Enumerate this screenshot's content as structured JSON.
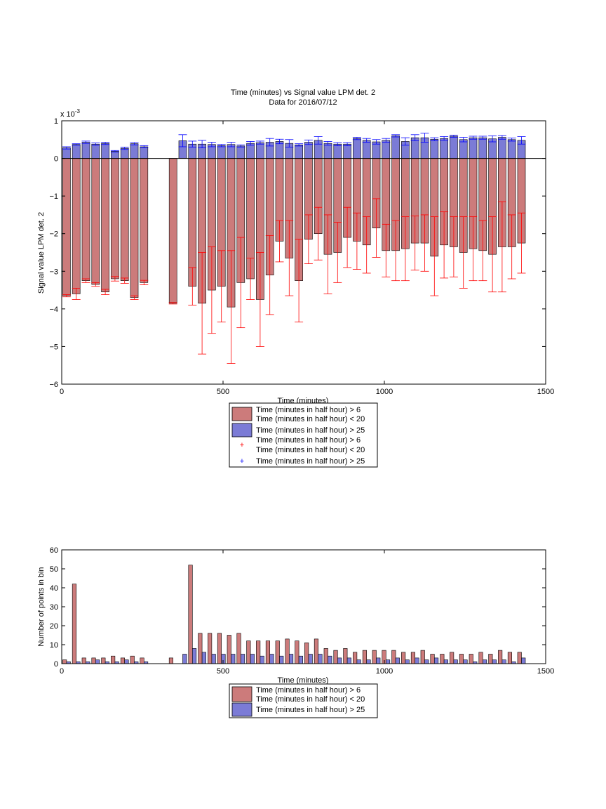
{
  "colors": {
    "red_bar": "#cc7b7b",
    "blue_bar": "#7b7bd6",
    "red_err": "#ff0000",
    "blue_err": "#0000ff",
    "axis": "#000000"
  },
  "chart_data": [
    {
      "type": "bar",
      "title": "Time (minutes) vs Signal value LPM det. 2",
      "subtitle": "Data for 2016/07/12",
      "xlabel": "Time (minutes)",
      "ylabel": "Signal value LPM det. 2",
      "y_exponent_label": "x 10",
      "y_exponent_power": "-3",
      "xlim": [
        0,
        1500
      ],
      "ylim": [
        -6,
        1
      ],
      "xticks": [
        "0",
        "500",
        "1000",
        "1500"
      ],
      "yticks": [
        "1",
        "0",
        "−1",
        "−2",
        "−3",
        "−4",
        "−5",
        "−6"
      ],
      "ytick_values": [
        1,
        0,
        -1,
        -2,
        -3,
        -4,
        -5,
        -6
      ],
      "grid": false,
      "legend_position": "below",
      "legend": [
        {
          "kind": "bar",
          "color": "red",
          "lines": [
            "Time (minutes in half hour) > 6",
            "Time (minutes in half hour) < 20"
          ]
        },
        {
          "kind": "bar",
          "color": "blue",
          "lines": [
            "Time (minutes in half hour) > 25"
          ]
        },
        {
          "kind": "marker",
          "color": "red",
          "lines": [
            "Time (minutes in half hour) > 6",
            "Time (minutes in half hour) < 20"
          ]
        },
        {
          "kind": "marker",
          "color": "blue",
          "lines": [
            "Time (minutes in half hour) > 25"
          ]
        }
      ],
      "x": [
        15,
        45,
        75,
        105,
        135,
        165,
        195,
        225,
        255,
        345,
        375,
        405,
        435,
        465,
        495,
        525,
        555,
        585,
        615,
        645,
        675,
        705,
        735,
        765,
        795,
        825,
        855,
        885,
        915,
        945,
        975,
        1005,
        1035,
        1065,
        1095,
        1125,
        1155,
        1185,
        1215,
        1245,
        1275,
        1305,
        1335,
        1365,
        1395,
        1425
      ],
      "series": [
        {
          "values": [
            -3.65,
            -3.6,
            -3.25,
            -3.35,
            -3.55,
            -3.2,
            -3.25,
            -3.7,
            -3.3,
            -3.85,
            null,
            -3.4,
            -3.85,
            -3.5,
            -3.4,
            -3.95,
            -3.3,
            -3.2,
            -3.75,
            -3.1,
            -2.2,
            -2.65,
            -3.25,
            -2.15,
            -2.0,
            -2.55,
            -2.5,
            -2.1,
            -2.2,
            -2.3,
            -1.85,
            -2.45,
            -2.45,
            -2.4,
            -2.25,
            -2.25,
            -2.6,
            -2.3,
            -2.35,
            -2.5,
            -2.4,
            -2.45,
            -2.55,
            -2.35,
            -2.35,
            -2.25
          ],
          "err": [
            0.03,
            0.15,
            0.05,
            0.05,
            0.07,
            0.06,
            0.07,
            0.05,
            0.06,
            0.02,
            null,
            0.5,
            1.35,
            1.15,
            0.95,
            1.5,
            1.2,
            0.55,
            1.25,
            1.05,
            0.55,
            1.0,
            1.1,
            0.65,
            0.7,
            1.05,
            0.8,
            0.8,
            0.75,
            0.75,
            0.78,
            0.7,
            0.8,
            0.85,
            0.72,
            0.75,
            1.05,
            0.88,
            0.8,
            0.95,
            0.85,
            0.8,
            1.0,
            1.2,
            0.85,
            0.8
          ]
        },
        {
          "values": [
            0.28,
            0.37,
            0.43,
            0.38,
            0.4,
            0.19,
            0.27,
            0.39,
            0.31,
            null,
            0.47,
            0.38,
            0.38,
            0.37,
            0.34,
            0.37,
            0.33,
            0.4,
            0.42,
            0.43,
            0.45,
            0.4,
            0.36,
            0.43,
            0.48,
            0.4,
            0.38,
            0.38,
            0.53,
            0.48,
            0.44,
            0.48,
            0.6,
            0.45,
            0.55,
            0.55,
            0.51,
            0.53,
            0.59,
            0.5,
            0.55,
            0.55,
            0.52,
            0.56,
            0.5,
            0.48
          ],
          "err": [
            0.03,
            0.02,
            0.03,
            0.03,
            0.03,
            0.02,
            0.03,
            0.03,
            0.03,
            null,
            0.16,
            0.08,
            0.1,
            0.06,
            0.03,
            0.06,
            0.03,
            0.05,
            0.04,
            0.1,
            0.06,
            0.1,
            0.03,
            0.06,
            0.1,
            0.05,
            0.04,
            0.04,
            0.03,
            0.05,
            0.06,
            0.05,
            0.03,
            0.1,
            0.08,
            0.12,
            0.04,
            0.05,
            0.03,
            0.06,
            0.04,
            0.04,
            0.08,
            0.05,
            0.04,
            0.1
          ]
        }
      ]
    },
    {
      "type": "bar",
      "xlabel": "Time (minutes)",
      "ylabel": "Number of points in bin",
      "xlim": [
        0,
        1500
      ],
      "ylim": [
        0,
        60
      ],
      "xticks": [
        "0",
        "500",
        "1000",
        "1500"
      ],
      "yticks": [
        "60",
        "50",
        "40",
        "30",
        "20",
        "10",
        "0"
      ],
      "ytick_values": [
        60,
        50,
        40,
        30,
        20,
        10,
        0
      ],
      "grid": false,
      "legend_position": "below",
      "legend": [
        {
          "kind": "bar",
          "color": "red",
          "lines": [
            "Time (minutes in half hour) > 6",
            "Time (minutes in half hour) < 20"
          ]
        },
        {
          "kind": "bar",
          "color": "blue",
          "lines": [
            "Time (minutes in half hour) > 25"
          ]
        }
      ],
      "x": [
        15,
        45,
        75,
        105,
        135,
        165,
        195,
        225,
        255,
        345,
        375,
        405,
        435,
        465,
        495,
        525,
        555,
        585,
        615,
        645,
        675,
        705,
        735,
        765,
        795,
        825,
        855,
        885,
        915,
        945,
        975,
        1005,
        1035,
        1065,
        1095,
        1125,
        1155,
        1185,
        1215,
        1245,
        1275,
        1305,
        1335,
        1365,
        1395,
        1425
      ],
      "series": [
        {
          "values": [
            2,
            42,
            3,
            3,
            3,
            4,
            3,
            4,
            3,
            3,
            0,
            52,
            16,
            16,
            16,
            15,
            16,
            12,
            12,
            12,
            12,
            13,
            12,
            11,
            13,
            8,
            7,
            8,
            6,
            7,
            7,
            7,
            7,
            6,
            6,
            7,
            5,
            5,
            6,
            5,
            5,
            6,
            5,
            7,
            6,
            6
          ]
        },
        {
          "values": [
            1,
            1,
            1,
            2,
            1,
            1,
            2,
            1,
            1,
            0,
            5,
            8,
            6,
            5,
            5,
            5,
            5,
            5,
            4,
            5,
            4,
            5,
            4,
            5,
            5,
            4,
            3,
            3,
            2,
            2,
            3,
            2,
            3,
            2,
            3,
            2,
            3,
            2,
            2,
            2,
            1,
            2,
            2,
            2,
            1,
            3
          ]
        }
      ]
    }
  ]
}
